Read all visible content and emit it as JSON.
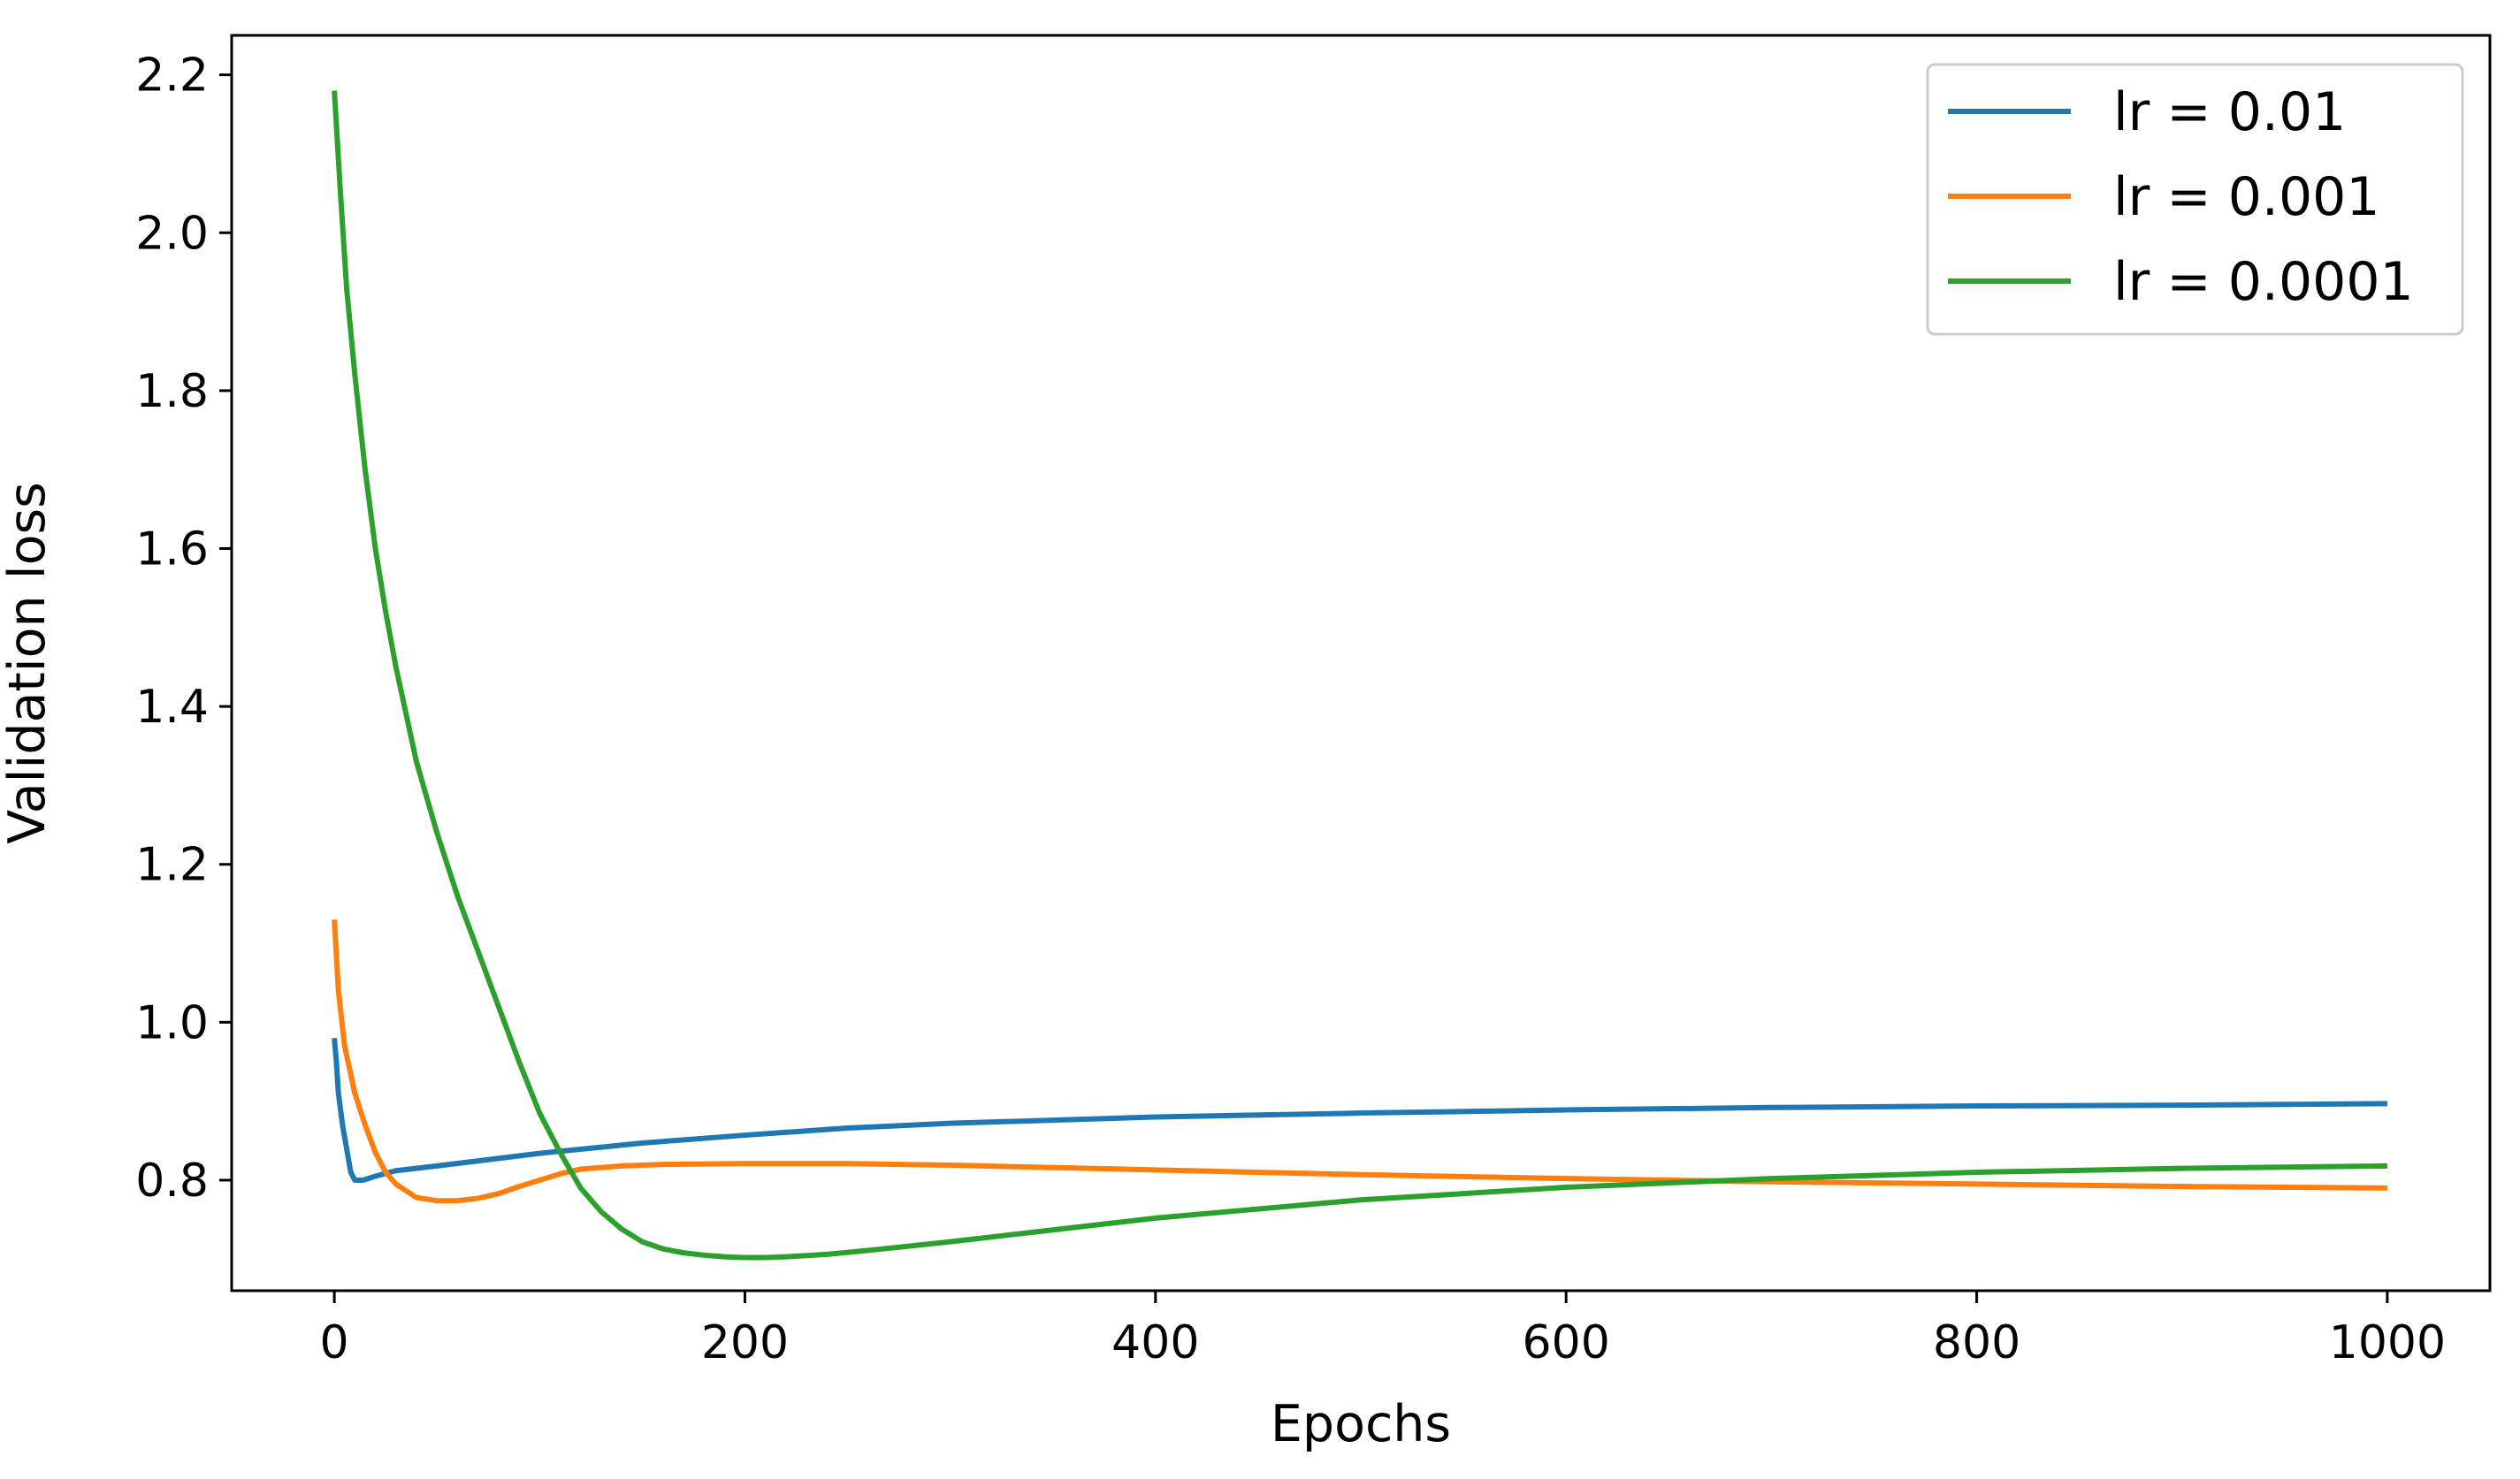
{
  "chart_data": {
    "type": "line",
    "title": "",
    "xlabel": "Epochs",
    "ylabel": "Validation loss",
    "xlim": [
      -50,
      1050
    ],
    "ylim": [
      0.66,
      2.25
    ],
    "xticks": [
      0,
      200,
      400,
      600,
      800,
      1000
    ],
    "xtick_labels": [
      "0",
      "200",
      "400",
      "600",
      "800",
      "1000"
    ],
    "yticks": [
      0.8,
      1.0,
      1.2,
      1.4,
      1.6,
      1.8,
      2.0,
      2.2
    ],
    "ytick_labels": [
      "0.8",
      "1.0",
      "1.2",
      "1.4",
      "1.6",
      "1.8",
      "2.0",
      "2.2"
    ],
    "grid": false,
    "legend_position": "top-right",
    "series": [
      {
        "name": "lr = 0.01",
        "color": "#1f77b4",
        "x": [
          0,
          1,
          2,
          4,
          6,
          8,
          10,
          14,
          20,
          30,
          50,
          75,
          100,
          150,
          200,
          250,
          300,
          400,
          500,
          600,
          700,
          800,
          900,
          1000
        ],
        "y": [
          0.98,
          0.95,
          0.91,
          0.87,
          0.84,
          0.81,
          0.8,
          0.8,
          0.805,
          0.812,
          0.818,
          0.826,
          0.834,
          0.847,
          0.857,
          0.866,
          0.872,
          0.88,
          0.885,
          0.889,
          0.892,
          0.894,
          0.895,
          0.897
        ]
      },
      {
        "name": "lr = 0.001",
        "color": "#ff7f0e",
        "x": [
          0,
          2,
          5,
          10,
          15,
          20,
          25,
          30,
          40,
          50,
          60,
          70,
          80,
          90,
          100,
          110,
          120,
          140,
          160,
          200,
          250,
          300,
          400,
          500,
          600,
          700,
          800,
          900,
          1000
        ],
        "y": [
          1.13,
          1.04,
          0.97,
          0.91,
          0.87,
          0.835,
          0.81,
          0.795,
          0.778,
          0.774,
          0.774,
          0.777,
          0.783,
          0.792,
          0.8,
          0.808,
          0.814,
          0.818,
          0.82,
          0.821,
          0.821,
          0.819,
          0.813,
          0.807,
          0.802,
          0.798,
          0.795,
          0.792,
          0.79
        ]
      },
      {
        "name": "lr = 0.0001",
        "color": "#2ca02c",
        "x": [
          0,
          3,
          6,
          10,
          15,
          20,
          25,
          30,
          40,
          50,
          60,
          70,
          80,
          90,
          100,
          110,
          120,
          130,
          140,
          150,
          160,
          170,
          180,
          190,
          200,
          210,
          220,
          240,
          260,
          300,
          350,
          400,
          500,
          600,
          700,
          800,
          900,
          1000
        ],
        "y": [
          2.18,
          2.05,
          1.93,
          1.82,
          1.7,
          1.6,
          1.52,
          1.45,
          1.33,
          1.24,
          1.16,
          1.09,
          1.02,
          0.95,
          0.885,
          0.835,
          0.79,
          0.76,
          0.738,
          0.722,
          0.713,
          0.708,
          0.705,
          0.703,
          0.702,
          0.702,
          0.703,
          0.706,
          0.711,
          0.722,
          0.737,
          0.752,
          0.775,
          0.791,
          0.802,
          0.81,
          0.815,
          0.818
        ]
      }
    ]
  }
}
